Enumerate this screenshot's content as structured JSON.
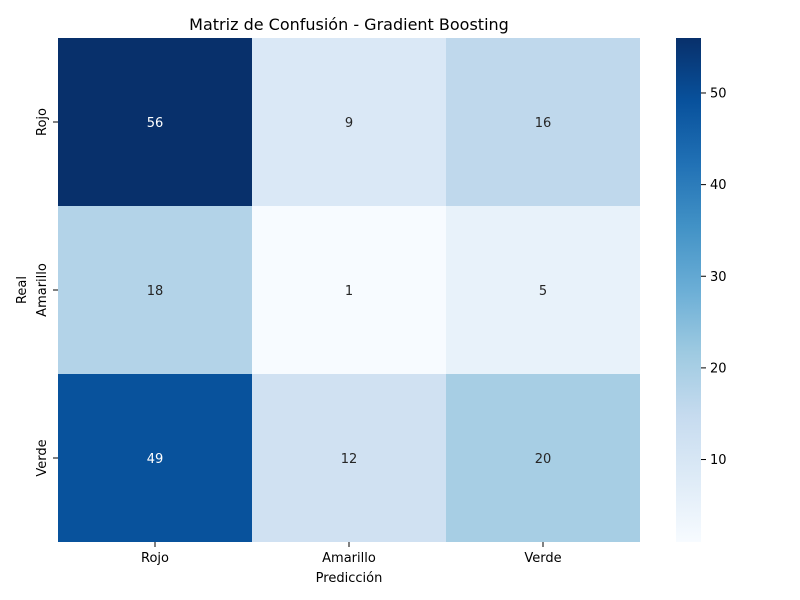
{
  "chart_data": {
    "type": "heatmap",
    "title": "Matriz de Confusión - Gradient Boosting",
    "xlabel": "Predicción",
    "ylabel": "Real",
    "x_categories": [
      "Rojo",
      "Amarillo",
      "Verde"
    ],
    "y_categories": [
      "Rojo",
      "Amarillo",
      "Verde"
    ],
    "values": [
      [
        56,
        9,
        16
      ],
      [
        18,
        1,
        5
      ],
      [
        49,
        12,
        20
      ]
    ],
    "colormap": "Blues",
    "color_range": [
      1,
      56
    ],
    "colorbar_ticks": [
      10,
      20,
      30,
      40,
      50
    ]
  }
}
